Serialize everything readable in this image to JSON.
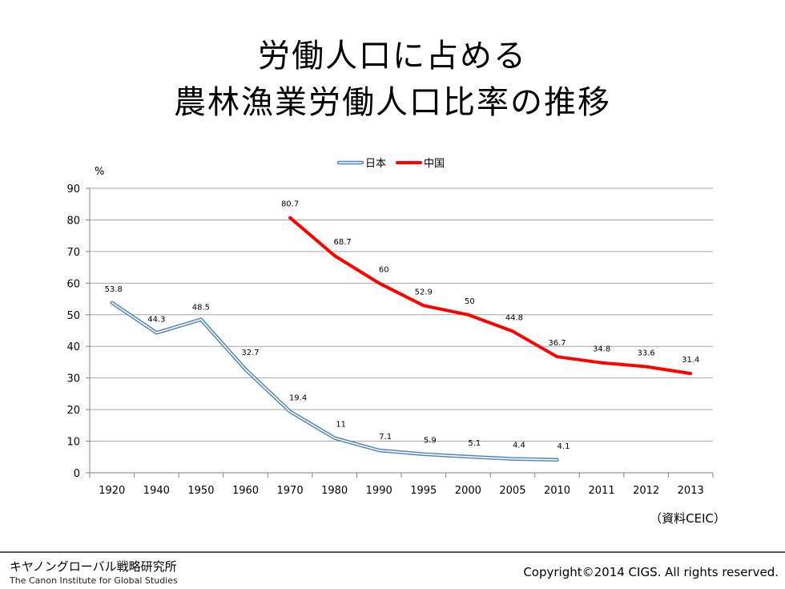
{
  "slide": {
    "title_line1": "労働人口に占める",
    "title_line2": "農林漁業労働人口比率の推移",
    "source": "（資料CEIC）",
    "org_jp": "キヤノングローバル戦略研究所",
    "org_en": "The Canon Institute for Global Studies",
    "copyright": "Copyright©2014 CIGS. All rights reserved."
  },
  "chart_data": {
    "type": "line",
    "ylabel": "%",
    "ylim": [
      0,
      90
    ],
    "yticks": [
      0,
      10,
      20,
      30,
      40,
      50,
      60,
      70,
      80,
      90
    ],
    "categories": [
      "1920",
      "1940",
      "1950",
      "1960",
      "1970",
      "1980",
      "1990",
      "1995",
      "2000",
      "2005",
      "2010",
      "2011",
      "2012",
      "2013"
    ],
    "grid": true,
    "legend_position": "top-center",
    "series": [
      {
        "name": "日本",
        "color": "#4f81bd",
        "style": "double-outline",
        "values": [
          53.8,
          44.3,
          48.5,
          32.7,
          19.4,
          11,
          7.1,
          5.9,
          5.1,
          4.4,
          4.1,
          null,
          null,
          null
        ],
        "labels": [
          "53.8",
          "44.3",
          "48.5",
          "32.7",
          "19.4",
          "11",
          "7.1",
          "5.9",
          "5.1",
          "4.4",
          "4.1",
          "",
          "",
          ""
        ]
      },
      {
        "name": "中国",
        "color": "#ff0000",
        "style": "solid",
        "values": [
          null,
          null,
          null,
          null,
          80.7,
          68.7,
          60,
          52.9,
          50,
          44.8,
          36.7,
          34.8,
          33.6,
          31.4
        ],
        "labels": [
          "",
          "",
          "",
          "",
          "80.7",
          "68.7",
          "60",
          "52.9",
          "50",
          "44.8",
          "36.7",
          "34.8",
          "33.6",
          "31.4"
        ]
      }
    ]
  }
}
